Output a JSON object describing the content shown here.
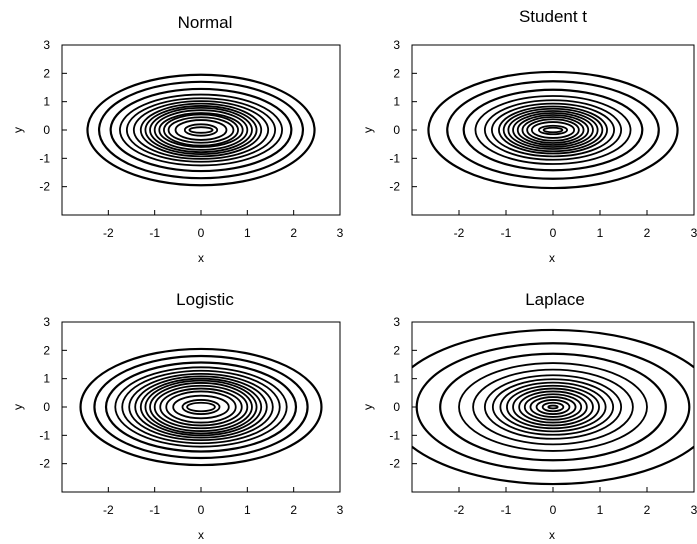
{
  "chart_data": [
    {
      "type": "contour",
      "title": "Normal",
      "xlabel": "x",
      "ylabel": "y",
      "xlim": [
        -3,
        3
      ],
      "ylim": [
        -3,
        3
      ],
      "xticks": [
        -2,
        -1,
        0,
        1,
        2,
        3
      ],
      "yticks": [
        -2,
        -1,
        0,
        1,
        2,
        3
      ],
      "center": [
        0,
        0
      ],
      "contour_levels_xy": [
        [
          0.25,
          0.1
        ],
        [
          0.35,
          0.2
        ],
        [
          0.55,
          0.35
        ],
        [
          0.7,
          0.45
        ],
        [
          0.8,
          0.55
        ],
        [
          0.9,
          0.6
        ],
        [
          1.0,
          0.7
        ],
        [
          1.1,
          0.78
        ],
        [
          1.2,
          0.85
        ],
        [
          1.3,
          0.93
        ],
        [
          1.45,
          1.02
        ],
        [
          1.6,
          1.12
        ],
        [
          1.75,
          1.25
        ],
        [
          1.95,
          1.45
        ],
        [
          2.2,
          1.7
        ],
        [
          2.45,
          1.95
        ]
      ]
    },
    {
      "type": "contour",
      "title": "Student t",
      "xlabel": "x",
      "ylabel": "y",
      "xlim": [
        -3,
        3
      ],
      "ylim": [
        -3,
        3
      ],
      "xticks": [
        -2,
        -1,
        0,
        1,
        2,
        3
      ],
      "yticks": [
        -2,
        -1,
        0,
        1,
        2,
        3
      ],
      "center": [
        0,
        0
      ],
      "contour_levels_xy": [
        [
          0.2,
          0.08
        ],
        [
          0.3,
          0.15
        ],
        [
          0.45,
          0.28
        ],
        [
          0.55,
          0.38
        ],
        [
          0.65,
          0.46
        ],
        [
          0.75,
          0.53
        ],
        [
          0.85,
          0.6
        ],
        [
          0.95,
          0.67
        ],
        [
          1.05,
          0.75
        ],
        [
          1.15,
          0.83
        ],
        [
          1.3,
          0.93
        ],
        [
          1.45,
          1.05
        ],
        [
          1.65,
          1.2
        ],
        [
          1.9,
          1.42
        ],
        [
          2.25,
          1.72
        ],
        [
          2.65,
          2.05
        ]
      ]
    },
    {
      "type": "contour",
      "title": "Logistic",
      "xlabel": "x",
      "ylabel": "y",
      "xlim": [
        -3,
        3
      ],
      "ylim": [
        -3,
        3
      ],
      "xticks": [
        -2,
        -1,
        0,
        1,
        2,
        3
      ],
      "yticks": [
        -2,
        -1,
        0,
        1,
        2,
        3
      ],
      "center": [
        0,
        0
      ],
      "contour_levels_xy": [
        [
          0.3,
          0.15
        ],
        [
          0.4,
          0.25
        ],
        [
          0.6,
          0.4
        ],
        [
          0.75,
          0.55
        ],
        [
          0.88,
          0.65
        ],
        [
          1.0,
          0.75
        ],
        [
          1.1,
          0.85
        ],
        [
          1.2,
          0.93
        ],
        [
          1.3,
          1.0
        ],
        [
          1.42,
          1.08
        ],
        [
          1.55,
          1.17
        ],
        [
          1.7,
          1.28
        ],
        [
          1.85,
          1.4
        ],
        [
          2.05,
          1.57
        ],
        [
          2.3,
          1.8
        ],
        [
          2.6,
          2.05
        ]
      ]
    },
    {
      "type": "contour",
      "title": "Laplace",
      "xlabel": "x",
      "ylabel": "y",
      "xlim": [
        -3,
        3
      ],
      "ylim": [
        -3,
        3
      ],
      "xticks": [
        -2,
        -1,
        0,
        1,
        2,
        3
      ],
      "yticks": [
        -2,
        -1,
        0,
        1,
        2,
        3
      ],
      "center": [
        0,
        0
      ],
      "contour_levels_xy": [
        [
          0.1,
          0.05
        ],
        [
          0.22,
          0.15
        ],
        [
          0.35,
          0.25
        ],
        [
          0.48,
          0.35
        ],
        [
          0.6,
          0.45
        ],
        [
          0.72,
          0.55
        ],
        [
          0.85,
          0.65
        ],
        [
          0.98,
          0.75
        ],
        [
          1.12,
          0.86
        ],
        [
          1.28,
          0.98
        ],
        [
          1.45,
          1.12
        ],
        [
          1.7,
          1.32
        ],
        [
          2.0,
          1.55
        ],
        [
          2.4,
          1.88
        ],
        [
          2.9,
          2.25
        ],
        [
          3.5,
          2.72
        ]
      ]
    }
  ]
}
